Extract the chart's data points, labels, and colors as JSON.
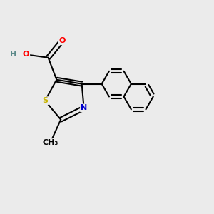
{
  "background_color": "#ebebeb",
  "bond_color": "#000000",
  "atom_colors": {
    "S": "#c8b400",
    "N": "#0000cd",
    "O": "#ff0000",
    "C": "#000000",
    "H": "#5c8a8a"
  },
  "figsize": [
    3.0,
    3.0
  ],
  "dpi": 100
}
